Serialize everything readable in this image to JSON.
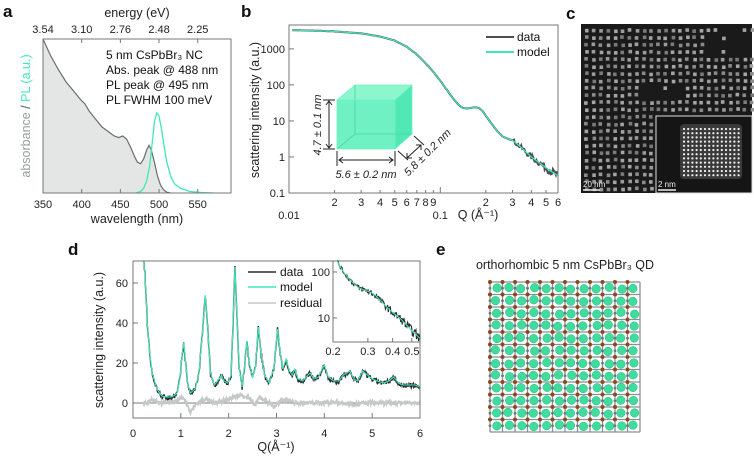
{
  "panel_labels": {
    "a": "a",
    "b": "b",
    "c": "c",
    "d": "d",
    "e": "e"
  },
  "colors": {
    "data": "#4a4f52",
    "model": "#3fe8b8",
    "residual": "#c4c8c8",
    "abs_fill": "#e4e5e5",
    "cube": "#52f2b8"
  },
  "chart_data": [
    {
      "id": "a",
      "type": "area",
      "xlabel": "wavelength (nm)",
      "x2label": "energy (eV)",
      "ylabel_parts": [
        "absorbance",
        " / ",
        "PL",
        " (a.u.)"
      ],
      "xlim": [
        350,
        593
      ],
      "ylim": [
        0,
        1
      ],
      "xticks": [
        350,
        400,
        450,
        500,
        550
      ],
      "xtick_labels": [
        "350",
        "400",
        "450",
        "500",
        "550"
      ],
      "x2tick_labels": [
        "3.54",
        "3.10",
        "2.76",
        "2.48",
        "2.25"
      ],
      "annotations": [
        "5 nm CsPbBr₃ NC",
        "Abs. peak @ 488 nm",
        "PL peak @ 495 nm",
        "PL FWHM 100 meV"
      ],
      "series": [
        {
          "name": "absorbance",
          "x": [
            350,
            360,
            370,
            380,
            390,
            398,
            404,
            410,
            418,
            426,
            434,
            442,
            448,
            453,
            458,
            463,
            468,
            472,
            476,
            480,
            484,
            487,
            490,
            494,
            498,
            502,
            506,
            510,
            515
          ],
          "y": [
            1.0,
            0.89,
            0.8,
            0.72,
            0.66,
            0.61,
            0.58,
            0.53,
            0.48,
            0.43,
            0.4,
            0.37,
            0.36,
            0.37,
            0.35,
            0.3,
            0.24,
            0.2,
            0.19,
            0.22,
            0.28,
            0.31,
            0.28,
            0.2,
            0.11,
            0.05,
            0.02,
            0.005,
            0
          ]
        },
        {
          "name": "PL",
          "x": [
            470,
            476,
            480,
            484,
            488,
            491,
            494,
            497,
            500,
            503,
            506,
            510,
            515,
            520,
            528,
            540,
            555,
            570
          ],
          "y": [
            0,
            0.01,
            0.03,
            0.08,
            0.18,
            0.32,
            0.46,
            0.52,
            0.5,
            0.42,
            0.32,
            0.2,
            0.11,
            0.06,
            0.03,
            0.01,
            0.003,
            0
          ]
        }
      ]
    },
    {
      "id": "b",
      "type": "line",
      "xscale": "log",
      "yscale": "log",
      "xlabel": "Q (Å⁻¹)",
      "ylabel": "scattering intensity (a.u.)",
      "xlim": [
        0.01,
        0.6
      ],
      "ylim": [
        0.1,
        4600
      ],
      "yticks": [
        0.1,
        1,
        10,
        100,
        1000
      ],
      "ytick_labels": [
        "0.1",
        "1",
        "10",
        "100",
        "1000"
      ],
      "xticks": [
        0.01,
        0.02,
        0.03,
        0.04,
        0.05,
        0.06,
        0.07,
        0.08,
        0.09,
        0.1,
        0.2,
        0.3,
        0.4,
        0.5,
        0.6
      ],
      "xtick_labels": [
        "0.01",
        "2",
        "3",
        "4",
        "5",
        "6",
        "7",
        "8",
        "9",
        "0.1",
        "2",
        "3",
        "4",
        "5",
        "6"
      ],
      "legend": [
        "data",
        "model"
      ],
      "legend_position": "top-right",
      "series": [
        {
          "name": "model",
          "x": [
            0.0105,
            0.015,
            0.02,
            0.03,
            0.04,
            0.05,
            0.06,
            0.07,
            0.08,
            0.09,
            0.1,
            0.11,
            0.12,
            0.13,
            0.14,
            0.15,
            0.16,
            0.17,
            0.18,
            0.19,
            0.2,
            0.22,
            0.24,
            0.26,
            0.28,
            0.3,
            0.33,
            0.36,
            0.4,
            0.45,
            0.5,
            0.55,
            0.6
          ],
          "y": [
            3300,
            3200,
            3050,
            2700,
            2200,
            1700,
            1150,
            700,
            400,
            230,
            130,
            75,
            45,
            30,
            23,
            22,
            23,
            24,
            23,
            19,
            14,
            8,
            5,
            3.6,
            3.2,
            2.9,
            2.1,
            1.5,
            1.0,
            0.7,
            0.5,
            0.38,
            0.3
          ]
        },
        {
          "name": "data",
          "noise_from_q": 0.3
        }
      ],
      "cube": {
        "height": "4.7 ± 0.1 nm",
        "width": "5.6 ± 0.2 nm",
        "depth": "5.8 ± 0.2 nm"
      }
    },
    {
      "id": "d",
      "type": "line",
      "xlabel": "Q(Å⁻¹)",
      "ylabel": "scattering intensity (a.u.)",
      "xlim": [
        0,
        6
      ],
      "ylim": [
        -7.5,
        71
      ],
      "xticks": [
        0,
        1,
        2,
        3,
        4,
        5,
        6
      ],
      "xtick_labels": [
        "0",
        "1",
        "2",
        "3",
        "4",
        "5",
        "6"
      ],
      "yticks": [
        0,
        20,
        40,
        60
      ],
      "ytick_labels": [
        "0",
        "20",
        "40",
        "60"
      ],
      "legend": [
        "data",
        "model",
        "residual"
      ],
      "legend_position": "top-center",
      "series": [
        {
          "name": "model",
          "x": [
            0.22,
            0.25,
            0.3,
            0.35,
            0.4,
            0.5,
            0.6,
            0.7,
            0.8,
            0.88,
            0.92,
            0.98,
            1.03,
            1.06,
            1.1,
            1.15,
            1.2,
            1.3,
            1.38,
            1.45,
            1.51,
            1.56,
            1.62,
            1.7,
            1.8,
            1.85,
            1.9,
            1.98,
            2.05,
            2.1,
            2.13,
            2.17,
            2.22,
            2.28,
            2.33,
            2.38,
            2.43,
            2.5,
            2.56,
            2.62,
            2.67,
            2.75,
            2.85,
            2.95,
            3.02,
            3.08,
            3.13,
            3.2,
            3.27,
            3.33,
            3.38,
            3.45,
            3.55,
            3.62,
            3.7,
            3.78,
            3.88,
            3.95,
            4.0,
            4.08,
            4.2,
            4.3,
            4.4,
            4.47,
            4.53,
            4.62,
            4.7,
            4.8,
            4.9,
            5.0,
            5.1,
            5.25,
            5.35,
            5.45,
            5.55,
            5.65,
            5.8,
            5.9,
            6.0
          ],
          "y": [
            72,
            65,
            40,
            25,
            15,
            7,
            3.5,
            3,
            3,
            4,
            5,
            12,
            25,
            30,
            20,
            9,
            5,
            7,
            15,
            35,
            54,
            38,
            15,
            9,
            12,
            14,
            11,
            10,
            14,
            45,
            68,
            45,
            18,
            8,
            18,
            31,
            20,
            13,
            18,
            38,
            26,
            14,
            10,
            18,
            37,
            25,
            17,
            22,
            16,
            14,
            17,
            12,
            11,
            13,
            15,
            12,
            13,
            17,
            19,
            13,
            11,
            11,
            14,
            15,
            16,
            12,
            11,
            16,
            14,
            12,
            11,
            10,
            11,
            13,
            10,
            9,
            9,
            9,
            8
          ]
        },
        {
          "name": "data",
          "follows": "model"
        },
        {
          "name": "residual",
          "x": [
            0.22,
            0.4,
            0.6,
            0.9,
            1.05,
            1.15,
            1.2,
            1.3,
            1.5,
            1.7,
            1.9,
            2.1,
            2.25,
            2.4,
            2.55,
            2.65,
            2.8,
            2.95,
            3.1,
            3.2,
            3.4,
            3.8,
            4.2,
            4.6,
            5.0,
            5.5,
            6.0
          ],
          "y": [
            -1,
            2,
            0,
            1,
            3,
            -2,
            -5,
            -1,
            2,
            0,
            1,
            3,
            4,
            3,
            -1,
            3,
            1,
            -2,
            1,
            2,
            0,
            0,
            0.5,
            -0.5,
            0,
            0,
            0.5
          ]
        }
      ],
      "inset": {
        "xscale": "log",
        "yscale": "log",
        "xlim": [
          0.2,
          0.55
        ],
        "ylim": [
          3,
          173
        ],
        "xticks": [
          0.2,
          0.3,
          0.4,
          0.5
        ],
        "xtick_labels": [
          "0.2",
          "0.3",
          "0.4",
          "0.5"
        ],
        "yticks": [
          10,
          100
        ],
        "ytick_labels": [
          "10",
          "100"
        ],
        "model": {
          "x": [
            0.21,
            0.22,
            0.23,
            0.25,
            0.27,
            0.29,
            0.31,
            0.33,
            0.35,
            0.38,
            0.41,
            0.44,
            0.47,
            0.5,
            0.55
          ],
          "y": [
            170,
            120,
            90,
            60,
            45,
            40,
            36,
            30,
            23,
            16,
            12,
            9.5,
            7,
            5.3,
            3.6
          ]
        }
      }
    }
  ],
  "tem": {
    "scale_bar_main": "20 nm",
    "scale_bar_inset": "2 nm"
  },
  "structure": {
    "title": "orthorhombic 5 nm CsPbBr₃ QD",
    "cells": 12
  }
}
